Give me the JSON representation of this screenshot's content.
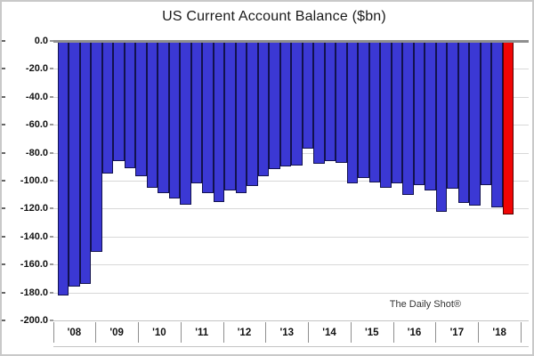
{
  "window": {
    "title": "US Current Account Balance ($bn)"
  },
  "watermark": "The Daily Shot®",
  "chart_data": {
    "type": "bar",
    "title": "US Current Account Balance ($bn)",
    "xlabel": "",
    "ylabel": "",
    "unit": "$bn",
    "ylim": [
      -200,
      0
    ],
    "grid": true,
    "y_tick_labels": [
      "0.0",
      "-20.0",
      "-40.0",
      "-60.0",
      "-80.0",
      "-100.0",
      "-120.0",
      "-140.0",
      "-160.0",
      "-180.0",
      "-200.0"
    ],
    "x_year_labels": [
      "'08",
      "'09",
      "'10",
      "'11",
      "'12",
      "'13",
      "'14",
      "'15",
      "'16",
      "'17",
      "'18"
    ],
    "categories": [
      "2008 Q1",
      "2008 Q2",
      "2008 Q3",
      "2008 Q4",
      "2009 Q1",
      "2009 Q2",
      "2009 Q3",
      "2009 Q4",
      "2010 Q1",
      "2010 Q2",
      "2010 Q3",
      "2010 Q4",
      "2011 Q1",
      "2011 Q2",
      "2011 Q3",
      "2011 Q4",
      "2012 Q1",
      "2012 Q2",
      "2012 Q3",
      "2012 Q4",
      "2013 Q1",
      "2013 Q2",
      "2013 Q3",
      "2013 Q4",
      "2014 Q1",
      "2014 Q2",
      "2014 Q3",
      "2014 Q4",
      "2015 Q1",
      "2015 Q2",
      "2015 Q3",
      "2015 Q4",
      "2016 Q1",
      "2016 Q2",
      "2016 Q3",
      "2016 Q4",
      "2017 Q1",
      "2017 Q2",
      "2017 Q3",
      "2017 Q4",
      "2018 Q1"
    ],
    "values": [
      -182,
      -176,
      -174,
      -151,
      -95,
      -86,
      -91,
      -97,
      -105,
      -109,
      -113,
      -117,
      -102,
      -109,
      -115,
      -107,
      -109,
      -104,
      -97,
      -92,
      -90,
      -89,
      -77,
      -88,
      -86,
      -87,
      -102,
      -98,
      -101,
      -105,
      -102,
      -110,
      -103,
      -107,
      -122,
      -106,
      -116,
      -118,
      -103,
      -119,
      -124
    ],
    "bar_color": "#3B38D4",
    "bar_border_color": "#12124e",
    "highlight_last_bar": true,
    "highlight_color": "#F00505",
    "highlight_border_color": "#550000",
    "legend": "none"
  }
}
